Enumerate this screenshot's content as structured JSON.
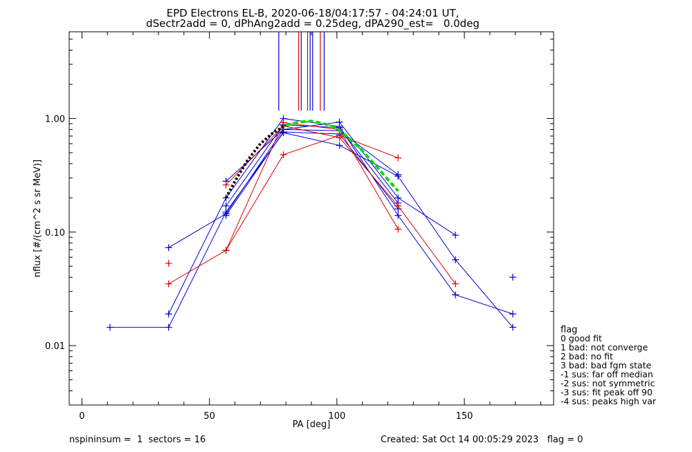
{
  "chart_data": {
    "type": "line",
    "title": "EPD Electrons EL-B, 2020-06-18/04:17:57 - 04:24:01 UT,",
    "subtitle": "dSectr2add = 0, dPhAng2add = 0.25deg, dPA290_est=   0.0deg",
    "xlabel": "PA [deg]",
    "ylabel": "nflux [#/(cm^2 s sr MeV)]",
    "xlim": [
      -5,
      185
    ],
    "ylim": [
      0.003,
      5.8
    ],
    "yscale": "log",
    "xticks": [
      0,
      50,
      100,
      150
    ],
    "yticks": [
      {
        "value": 0.01,
        "label": "0.01"
      },
      {
        "value": 0.1,
        "label": "0.10"
      },
      {
        "value": 1.0,
        "label": "1.00"
      }
    ],
    "grid": false,
    "colors": {
      "red": "#dd0000",
      "blue": "#0000cc",
      "black": "#000000",
      "green": "#00dd00"
    },
    "series": [
      {
        "color": "blue",
        "points": [
          [
            11,
            0.0145
          ],
          [
            34,
            0.0145
          ],
          [
            56.5,
            0.15
          ],
          [
            79,
            0.75
          ],
          [
            101,
            0.58
          ],
          [
            124,
            0.31
          ],
          [
            146.5,
            0.057
          ],
          [
            169,
            0.0145
          ]
        ]
      },
      {
        "color": "blue",
        "points": [
          [
            34,
            0.073
          ],
          [
            56.5,
            0.145
          ],
          [
            79,
            0.8
          ],
          [
            101,
            0.93
          ],
          [
            124,
            0.2
          ],
          [
            146.5,
            0.094
          ]
        ]
      },
      {
        "color": "blue",
        "points": [
          [
            34,
            0.019
          ],
          [
            56.5,
            0.2
          ],
          [
            79,
            1.0
          ],
          [
            101,
            0.85
          ],
          [
            124,
            0.14
          ],
          [
            146.5,
            0.028
          ],
          [
            169,
            0.019
          ]
        ]
      },
      {
        "color": "blue",
        "points": [
          [
            56.5,
            0.28
          ],
          [
            79,
            0.8
          ],
          [
            101,
            0.78
          ],
          [
            124,
            0.32
          ]
        ]
      },
      {
        "color": "blue",
        "points": [
          [
            56.5,
            0.17
          ],
          [
            79,
            0.88
          ],
          [
            101,
            0.83
          ],
          [
            124,
            0.18
          ]
        ]
      },
      {
        "color": "blue",
        "points": [
          [
            56.5,
            0.14
          ],
          [
            79,
            0.76
          ],
          [
            101,
            0.73
          ],
          [
            124,
            0.16
          ]
        ]
      },
      {
        "color": "red",
        "points": [
          [
            34,
            0.035
          ],
          [
            56.5,
            0.069
          ],
          [
            79,
            0.48
          ],
          [
            101,
            0.71
          ],
          [
            124,
            0.45
          ]
        ]
      },
      {
        "color": "red",
        "points": [
          [
            56.5,
            0.069
          ],
          [
            79,
            0.92
          ],
          [
            101,
            0.8
          ],
          [
            124,
            0.106
          ]
        ]
      },
      {
        "color": "red",
        "points": [
          [
            56.5,
            0.26
          ],
          [
            79,
            0.86
          ],
          [
            101,
            0.68
          ],
          [
            124,
            0.17
          ],
          [
            146.5,
            0.035
          ]
        ]
      }
    ],
    "isolated_points": [
      {
        "color": "red",
        "x": 34,
        "y": 0.053
      },
      {
        "color": "blue",
        "x": 169,
        "y": 0.04
      }
    ],
    "fits": [
      {
        "color": "black",
        "dash": "dotted",
        "points": [
          [
            56.5,
            0.2
          ],
          [
            60,
            0.28
          ],
          [
            65,
            0.43
          ],
          [
            70,
            0.6
          ],
          [
            75,
            0.75
          ],
          [
            80,
            0.87
          ]
        ]
      },
      {
        "color": "green",
        "dash": "dashed",
        "points": [
          [
            80,
            0.87
          ],
          [
            85,
            0.93
          ],
          [
            90,
            0.95
          ],
          [
            95,
            0.9
          ],
          [
            100,
            0.82
          ],
          [
            105,
            0.66
          ],
          [
            110,
            0.52
          ],
          [
            115,
            0.39
          ],
          [
            120,
            0.29
          ],
          [
            124,
            0.23
          ]
        ]
      }
    ],
    "peak_markers": [
      {
        "color": "blue",
        "x": 77.2
      },
      {
        "color": "red",
        "x": 85
      },
      {
        "color": "blue",
        "x": 86
      },
      {
        "color": "red",
        "x": 88.5
      },
      {
        "color": "blue",
        "x": 89.5
      },
      {
        "color": "blue",
        "x": 90.5
      },
      {
        "color": "red",
        "x": 93.5
      },
      {
        "color": "blue",
        "x": 95
      }
    ]
  },
  "legend": {
    "title": "flag",
    "items": [
      " 0 good fit",
      " 1 bad: not converge",
      " 2 bad: no fit",
      " 3 bad: bad fgm state",
      "-1 sus: far off median",
      "-2 sus: not symmetric",
      "-3 sus: fit peak off 90",
      "-4 sus: peaks high var"
    ]
  },
  "footer": {
    "left": "nspininsum =  1  sectors = 16",
    "right": "Created: Sat Oct 14 00:05:29 2023   flag = 0"
  }
}
